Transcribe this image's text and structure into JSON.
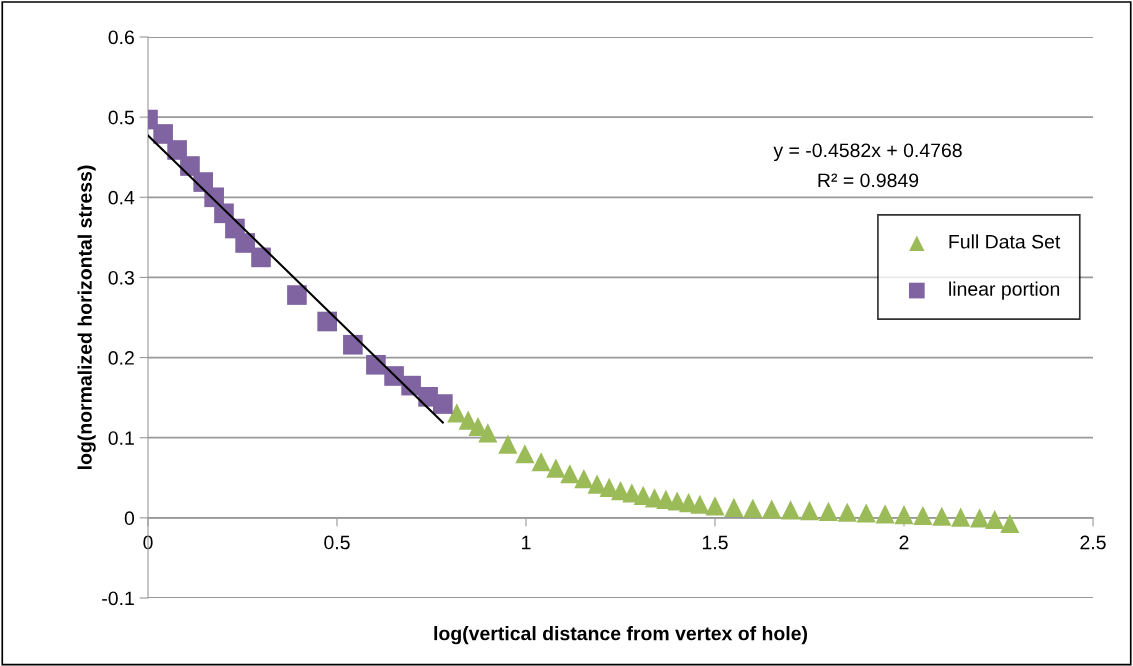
{
  "chart_data": {
    "type": "scatter",
    "xlabel": "log(vertical distance from vertex of hole)",
    "ylabel": "log(normalized horizontal stress)",
    "xlim": [
      0,
      2.5
    ],
    "xticks": [
      0,
      0.5,
      1,
      1.5,
      2,
      2.5
    ],
    "ylim": [
      -0.1,
      0.6
    ],
    "yticks": [
      -0.1,
      0,
      0.1,
      0.2,
      0.3,
      0.4,
      0.5,
      0.6
    ],
    "grid": "y",
    "legend": "top right",
    "annotations": [
      "y = -0.4582x + 0.4768",
      "R² = 0.9849"
    ],
    "series": [
      {
        "name": "Full Data Set",
        "marker": "triangle",
        "color": "#9bbb59",
        "x": [
          0.817,
          0.847,
          0.873,
          0.899,
          0.952,
          0.997,
          1.04,
          1.079,
          1.116,
          1.153,
          1.188,
          1.22,
          1.25,
          1.28,
          1.31,
          1.34,
          1.37,
          1.4,
          1.43,
          1.46,
          1.5,
          1.55,
          1.6,
          1.65,
          1.7,
          1.75,
          1.8,
          1.85,
          1.9,
          1.95,
          2.0,
          2.05,
          2.1,
          2.15,
          2.2,
          2.24,
          2.28
        ],
        "values": [
          0.131,
          0.122,
          0.114,
          0.106,
          0.092,
          0.08,
          0.07,
          0.062,
          0.055,
          0.049,
          0.042,
          0.038,
          0.034,
          0.031,
          0.028,
          0.025,
          0.023,
          0.021,
          0.019,
          0.017,
          0.015,
          0.013,
          0.012,
          0.011,
          0.01,
          0.009,
          0.008,
          0.007,
          0.006,
          0.005,
          0.004,
          0.003,
          0.002,
          0.001,
          0.0,
          -0.002,
          -0.007
        ]
      },
      {
        "name": "linear portion",
        "marker": "square",
        "color": "#8064a2",
        "x": [
          0,
          0.04,
          0.077,
          0.111,
          0.146,
          0.175,
          0.201,
          0.23,
          0.257,
          0.299,
          0.394,
          0.474,
          0.542,
          0.603,
          0.651,
          0.696,
          0.741,
          0.78
        ],
        "values": [
          0.497,
          0.479,
          0.459,
          0.439,
          0.419,
          0.4,
          0.38,
          0.361,
          0.343,
          0.325,
          0.278,
          0.245,
          0.216,
          0.191,
          0.177,
          0.165,
          0.151,
          0.142
        ]
      },
      {
        "type": "line",
        "marker": "none",
        "line_style": "solid",
        "color": "#000000",
        "x": [
          0,
          0.78
        ],
        "values": [
          0.477,
          0.119
        ]
      }
    ]
  }
}
